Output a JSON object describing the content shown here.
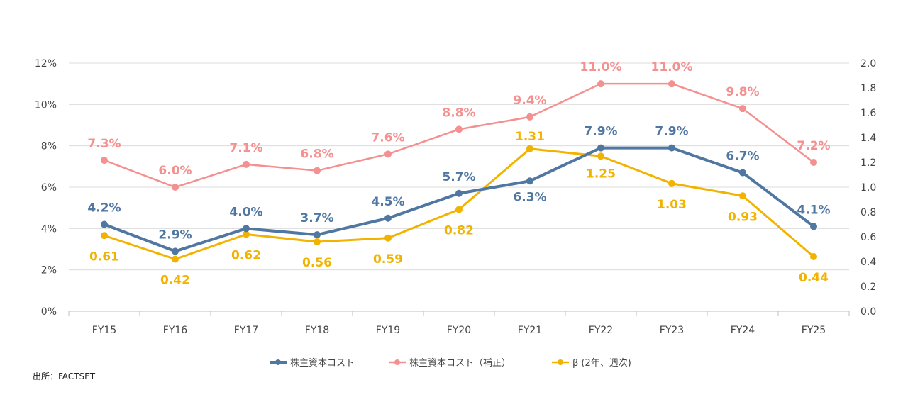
{
  "source_note": "出所：FACTSET",
  "chart_data": {
    "type": "line",
    "categories": [
      "FY15",
      "FY16",
      "FY17",
      "FY18",
      "FY19",
      "FY20",
      "FY21",
      "FY22",
      "FY23",
      "FY24",
      "FY25"
    ],
    "y_left": {
      "ticks": [
        "0%",
        "2%",
        "4%",
        "6%",
        "8%",
        "10%",
        "12%"
      ],
      "ylim": [
        0,
        12
      ]
    },
    "y_right": {
      "ticks": [
        "0.0",
        "0.2",
        "0.4",
        "0.6",
        "0.8",
        "1.0",
        "1.2",
        "1.4",
        "1.6",
        "1.8",
        "2.0"
      ],
      "ylim": [
        0,
        2.0
      ]
    },
    "grid": true,
    "legend_position": "bottom",
    "series": [
      {
        "name": "株主資本コスト",
        "axis": "left",
        "color": "#4f77a1",
        "values": [
          4.2,
          2.9,
          4.0,
          3.7,
          4.5,
          5.7,
          6.3,
          7.9,
          7.9,
          6.7,
          4.1
        ],
        "labels": [
          "4.2%",
          "2.9%",
          "4.0%",
          "3.7%",
          "4.5%",
          "5.7%",
          "6.3%",
          "7.9%",
          "7.9%",
          "6.7%",
          "4.1%"
        ]
      },
      {
        "name": "株主資本コスト（補正）",
        "axis": "left",
        "color": "#f4908f",
        "values": [
          7.3,
          6.0,
          7.1,
          6.8,
          7.6,
          8.8,
          9.4,
          11.0,
          11.0,
          9.8,
          7.2
        ],
        "labels": [
          "7.3%",
          "6.0%",
          "7.1%",
          "6.8%",
          "7.6%",
          "8.8%",
          "9.4%",
          "11.0%",
          "11.0%",
          "9.8%",
          "7.2%"
        ]
      },
      {
        "name": "β (2年、週次)",
        "axis": "right",
        "color": "#f2b300",
        "values": [
          0.61,
          0.42,
          0.62,
          0.56,
          0.59,
          0.82,
          1.31,
          1.25,
          1.03,
          0.93,
          0.44
        ],
        "labels": [
          "0.61",
          "0.42",
          "0.62",
          "0.56",
          "0.59",
          "0.82",
          "1.31",
          "1.25",
          "1.03",
          "0.93",
          "0.44"
        ]
      }
    ]
  }
}
